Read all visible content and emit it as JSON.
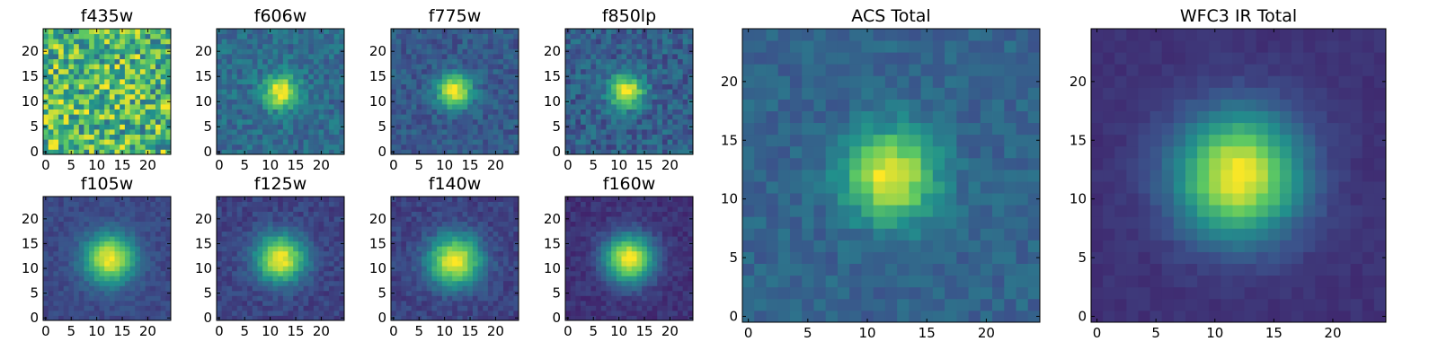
{
  "chart_data": [
    {
      "type": "heatmap",
      "title": "f435w",
      "xlim": [
        0,
        25
      ],
      "ylim": [
        0,
        25
      ],
      "xticks": [
        "0",
        "5",
        "10",
        "15",
        "20"
      ],
      "yticks": [
        "0",
        "5",
        "10",
        "15",
        "20"
      ],
      "peak": [
        12,
        11.5
      ],
      "noise": 0.9,
      "sigma": 3.0,
      "base": 0.55
    },
    {
      "type": "heatmap",
      "title": "f606w",
      "xlim": [
        0,
        25
      ],
      "ylim": [
        0,
        25
      ],
      "xticks": [
        "0",
        "5",
        "10",
        "15",
        "20"
      ],
      "yticks": [
        "0",
        "5",
        "10",
        "15",
        "20"
      ],
      "peak": [
        12,
        12
      ],
      "noise": 0.22,
      "sigma": 2.3,
      "base": 0.35
    },
    {
      "type": "heatmap",
      "title": "f775w",
      "xlim": [
        0,
        25
      ],
      "ylim": [
        0,
        25
      ],
      "xticks": [
        "0",
        "5",
        "10",
        "15",
        "20"
      ],
      "yticks": [
        "0",
        "5",
        "10",
        "15",
        "20"
      ],
      "peak": [
        12,
        12
      ],
      "noise": 0.18,
      "sigma": 2.3,
      "base": 0.28
    },
    {
      "type": "heatmap",
      "title": "f850lp",
      "xlim": [
        0,
        25
      ],
      "ylim": [
        0,
        25
      ],
      "xticks": [
        "0",
        "5",
        "10",
        "15",
        "20"
      ],
      "yticks": [
        "0",
        "5",
        "10",
        "15",
        "20"
      ],
      "peak": [
        11.5,
        12
      ],
      "noise": 0.24,
      "sigma": 2.3,
      "base": 0.3
    },
    {
      "type": "heatmap",
      "title": "f105w",
      "xlim": [
        0,
        25
      ],
      "ylim": [
        0,
        25
      ],
      "xticks": [
        "0",
        "5",
        "10",
        "15",
        "20"
      ],
      "yticks": [
        "0",
        "5",
        "10",
        "15",
        "20"
      ],
      "peak": [
        12.5,
        12
      ],
      "noise": 0.1,
      "sigma": 3.4,
      "base": 0.22
    },
    {
      "type": "heatmap",
      "title": "f125w",
      "xlim": [
        0,
        25
      ],
      "ylim": [
        0,
        25
      ],
      "xticks": [
        "0",
        "5",
        "10",
        "15",
        "20"
      ],
      "yticks": [
        "0",
        "5",
        "10",
        "15",
        "20"
      ],
      "peak": [
        12,
        12
      ],
      "noise": 0.12,
      "sigma": 3.3,
      "base": 0.2
    },
    {
      "type": "heatmap",
      "title": "f140w",
      "xlim": [
        0,
        25
      ],
      "ylim": [
        0,
        25
      ],
      "xticks": [
        "0",
        "5",
        "10",
        "15",
        "20"
      ],
      "yticks": [
        "0",
        "5",
        "10",
        "15",
        "20"
      ],
      "peak": [
        12,
        11.5
      ],
      "noise": 0.12,
      "sigma": 3.5,
      "base": 0.2
    },
    {
      "type": "heatmap",
      "title": "f160w",
      "xlim": [
        0,
        25
      ],
      "ylim": [
        0,
        25
      ],
      "xticks": [
        "0",
        "5",
        "10",
        "15",
        "20"
      ],
      "yticks": [
        "0",
        "5",
        "10",
        "15",
        "20"
      ],
      "peak": [
        12,
        12
      ],
      "noise": 0.1,
      "sigma": 3.3,
      "base": 0.15
    },
    {
      "type": "heatmap",
      "title": "ACS Total",
      "xlim": [
        0,
        25
      ],
      "ylim": [
        0,
        25
      ],
      "xticks": [
        "0",
        "5",
        "10",
        "15",
        "20"
      ],
      "yticks": [
        "0",
        "5",
        "10",
        "15",
        "20"
      ],
      "peak": [
        12,
        12
      ],
      "noise": 0.14,
      "sigma": 2.6,
      "base": 0.32
    },
    {
      "type": "heatmap",
      "title": "WFC3 IR Total",
      "xlim": [
        0,
        25
      ],
      "ylim": [
        0,
        25
      ],
      "xticks": [
        "0",
        "5",
        "10",
        "15",
        "20"
      ],
      "yticks": [
        "0",
        "5",
        "10",
        "15",
        "20"
      ],
      "peak": [
        12,
        12
      ],
      "noise": 0.05,
      "sigma": 3.6,
      "base": 0.15
    }
  ],
  "colormap": {
    "name": "viridis",
    "stops": [
      "#440154",
      "#3b528b",
      "#21918c",
      "#5ec962",
      "#fde725"
    ]
  }
}
